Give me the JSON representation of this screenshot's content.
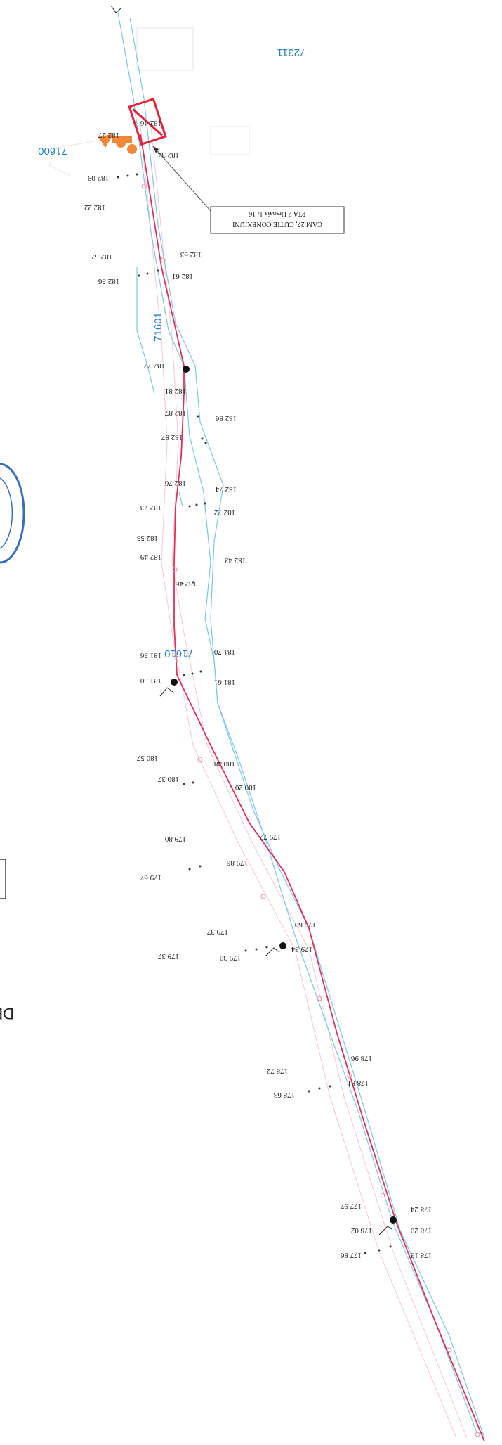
{
  "legend": {
    "title": "CAM 27, CUTIE CONEXIUNI",
    "subtitle": "PTA 2 Ursoaia 1/ 16"
  },
  "cut_off_text": "DE",
  "parcels": [
    {
      "id": "72311"
    },
    {
      "id": "71600"
    },
    {
      "id": "71601"
    },
    {
      "id": "71610"
    }
  ],
  "elevations": [
    "182 46",
    "182 27",
    "182 34",
    "182 09",
    "182 22",
    "182 57",
    "182 63",
    "182 56",
    "182 61",
    "182 72",
    "182 81",
    "182 87",
    "182 86",
    "182 87",
    "182 76",
    "182 74",
    "182 73",
    "182 72",
    "182 55",
    "182 49",
    "182 43",
    "182 46",
    "181 56",
    "181 70",
    "181 50",
    "181 61",
    "180 57",
    "180 48",
    "180 37",
    "180 20",
    "179 80",
    "179 72",
    "179 86",
    "179 67",
    "179 60",
    "179 37",
    "179 34",
    "179 37",
    "179 30",
    "178 96",
    "178 72",
    "178 81",
    "178 63",
    "177 97",
    "178 24",
    "178 02",
    "178 20",
    "177 86",
    "178 13"
  ],
  "colors": {
    "network_line": "#e0305a",
    "boundary": "#7ec6e6",
    "parcel_label": "#2a7fc0",
    "connection_box": "#e0243a",
    "meter": "#f0883a",
    "stamp": "#3b6fb5"
  }
}
